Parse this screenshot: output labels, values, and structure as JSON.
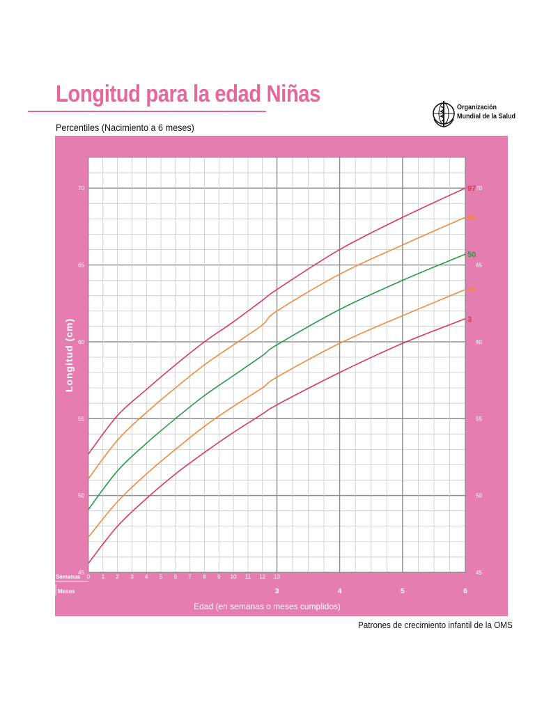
{
  "header": {
    "title": "Longitud para la edad Niñas",
    "subtitle": "Percentiles (Nacimiento a 6 meses)",
    "org_line1": "Organización",
    "org_line2": "Mundial de la Salud",
    "org_logo": "who-emblem-icon"
  },
  "footer": {
    "text": "Patrones de crecimiento infantil de la OMS"
  },
  "colors": {
    "frame": "#e57db1",
    "grid": "#9a9a9a",
    "p97": "#d63a5e",
    "p85": "#f08a3c",
    "p50": "#2a9a4a",
    "p15": "#f08a3c",
    "p3": "#d63a5e"
  },
  "chart_data": {
    "type": "line",
    "title": "Longitud para la edad Niñas",
    "subtitle": "Percentiles (Nacimiento a 6 meses)",
    "xlabel": "Edad (en semanas o meses cumplidos)",
    "ylabel": "Longitud (cm)",
    "x_unit_note": "semanas",
    "xlim": [
      0,
      26
    ],
    "ylim": [
      45,
      72
    ],
    "y_ticks": [
      45,
      50,
      55,
      60,
      65,
      70
    ],
    "x_row_labels": {
      "weeks": "Semanas",
      "months": "Meses"
    },
    "week_ticks": [
      "0",
      "1",
      "2",
      "3",
      "4",
      "5",
      "6",
      "7",
      "8",
      "9",
      "10",
      "11",
      "12",
      "13"
    ],
    "month_ticks": [
      {
        "label": "3",
        "at": 13
      },
      {
        "label": "4",
        "at": 17.33
      },
      {
        "label": "5",
        "at": 21.67
      },
      {
        "label": "6",
        "at": 26
      }
    ],
    "grid": true,
    "series": [
      {
        "name": "97",
        "color_key": "p97",
        "x": [
          0,
          2,
          4,
          6,
          8,
          10,
          12,
          13,
          17.33,
          21.67,
          26
        ],
        "values": [
          52.7,
          55.2,
          56.9,
          58.5,
          60.0,
          61.3,
          62.7,
          63.4,
          66.0,
          68.1,
          70.0
        ]
      },
      {
        "name": "85",
        "color_key": "p85",
        "x": [
          0,
          2,
          4,
          6,
          8,
          10,
          12,
          13,
          17.33,
          21.67,
          26
        ],
        "values": [
          51.1,
          53.6,
          55.4,
          57.0,
          58.5,
          59.8,
          61.1,
          62.0,
          64.4,
          66.3,
          68.1
        ]
      },
      {
        "name": "50",
        "color_key": "p50",
        "x": [
          0,
          2,
          4,
          6,
          8,
          10,
          12,
          13,
          17.33,
          21.67,
          26
        ],
        "values": [
          49.1,
          51.6,
          53.4,
          55.0,
          56.5,
          57.8,
          59.1,
          59.8,
          62.1,
          64.0,
          65.7
        ]
      },
      {
        "name": "15",
        "color_key": "p15",
        "x": [
          0,
          2,
          4,
          6,
          8,
          10,
          12,
          13,
          17.33,
          21.67,
          26
        ],
        "values": [
          47.3,
          49.6,
          51.4,
          53.0,
          54.5,
          55.8,
          57.0,
          57.7,
          59.9,
          61.7,
          63.4
        ]
      },
      {
        "name": "3",
        "color_key": "p3",
        "x": [
          0,
          2,
          4,
          6,
          8,
          10,
          12,
          13,
          17.33,
          21.67,
          26
        ],
        "values": [
          45.6,
          48.0,
          49.8,
          51.4,
          52.8,
          54.1,
          55.3,
          55.9,
          58.0,
          59.9,
          61.5
        ]
      }
    ]
  }
}
